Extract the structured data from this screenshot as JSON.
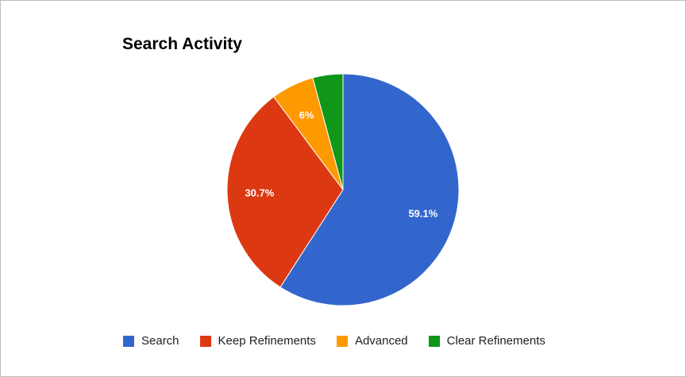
{
  "chart_data": {
    "type": "pie",
    "title": "Search Activity",
    "legend_position": "bottom",
    "slices": [
      {
        "label": "Search",
        "value": 59.1,
        "display": "59.1%",
        "color": "#3366cc"
      },
      {
        "label": "Keep Refinements",
        "value": 30.7,
        "display": "30.7%",
        "color": "#dc3912"
      },
      {
        "label": "Advanced",
        "value": 6.0,
        "display": "6%",
        "color": "#ff9900"
      },
      {
        "label": "Clear Refinements",
        "value": 4.2,
        "display": "",
        "color": "#109618"
      }
    ]
  }
}
